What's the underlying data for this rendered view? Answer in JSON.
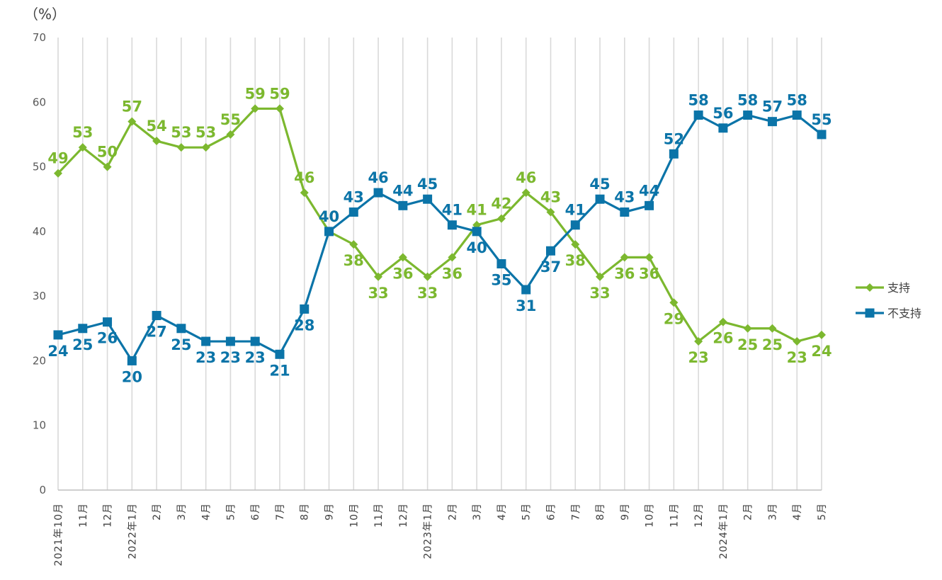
{
  "chart_data": {
    "type": "line",
    "unit_label": "（%）",
    "ylim": [
      0,
      70
    ],
    "yticks": [
      0,
      10,
      20,
      30,
      40,
      50,
      60,
      70
    ],
    "grid": "vertical",
    "legend_position": "right",
    "categories": [
      "2021年10月",
      "11月",
      "12月",
      "2022年1月",
      "2月",
      "3月",
      "4月",
      "5月",
      "6月",
      "7月",
      "8月",
      "9月",
      "10月",
      "11月",
      "12月",
      "2023年1月",
      "2月",
      "3月",
      "4月",
      "5月",
      "6月",
      "7月",
      "8月",
      "9月",
      "10月",
      "11月",
      "12月",
      "2024年1月",
      "2月",
      "3月",
      "4月",
      "5月"
    ],
    "series": [
      {
        "name": "支持",
        "color": "#7cb82f",
        "marker": "diamond",
        "values": [
          49,
          53,
          50,
          57,
          54,
          53,
          53,
          55,
          59,
          59,
          46,
          40,
          38,
          33,
          36,
          33,
          36,
          41,
          42,
          46,
          43,
          38,
          33,
          36,
          36,
          29,
          23,
          26,
          25,
          25,
          23,
          24
        ]
      },
      {
        "name": "不支持",
        "color": "#0b74a8",
        "marker": "square",
        "values": [
          24,
          25,
          26,
          20,
          27,
          25,
          23,
          23,
          23,
          21,
          28,
          40,
          43,
          46,
          44,
          45,
          41,
          40,
          35,
          31,
          37,
          41,
          45,
          43,
          44,
          52,
          58,
          56,
          58,
          57,
          58,
          55
        ]
      }
    ]
  }
}
